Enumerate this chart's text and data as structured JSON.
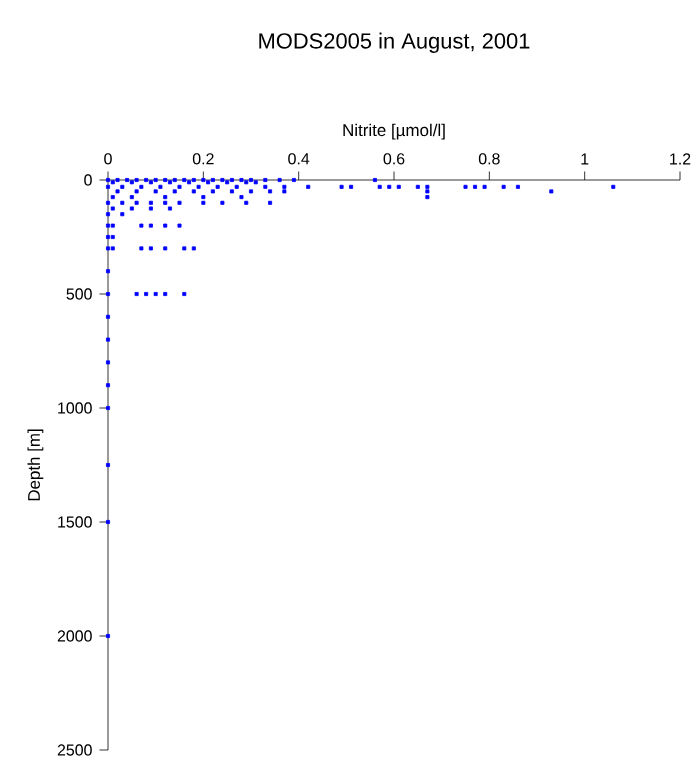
{
  "chart_data": {
    "type": "scatter",
    "title": "MODS2005 in August, 2001",
    "xlabel": "Nitrite [µmol/l]",
    "ylabel": "Depth [m]",
    "xlim": [
      0,
      1.2
    ],
    "xticks": [
      0,
      0.2,
      0.4,
      0.6,
      0.8,
      1,
      1.2
    ],
    "ylim": [
      2500,
      0
    ],
    "yticks": [
      0,
      500,
      1000,
      1500,
      2000,
      2500
    ],
    "marker": "square",
    "series": [
      {
        "color": "#0000ff",
        "x": [
          0,
          0.02,
          0.04,
          0.06,
          0.08,
          0.1,
          0.12,
          0.14,
          0.16,
          0.18,
          0.2,
          0.22,
          0.24,
          0.26,
          0.28,
          0.3,
          0.33,
          0.36,
          0.39,
          0.56,
          0.01,
          0.05,
          0.09,
          0.13,
          0.17,
          0.21,
          0.25,
          0.29,
          0.31,
          0,
          0.03,
          0.07,
          0.11,
          0.15,
          0.19,
          0.23,
          0.27,
          0.33,
          0.37,
          0.42,
          0.49,
          0.51,
          0.57,
          0.59,
          0.61,
          0.65,
          0.67,
          0.75,
          0.77,
          0.79,
          0.83,
          0.86,
          1.06,
          0.02,
          0.06,
          0.1,
          0.14,
          0.18,
          0.22,
          0.26,
          0.3,
          0.34,
          0.37,
          0.67,
          0.93,
          0.67,
          0.01,
          0.05,
          0.12,
          0.2,
          0.28,
          0,
          0.03,
          0.06,
          0.09,
          0.12,
          0.15,
          0.2,
          0.24,
          0.29,
          0.34,
          0.01,
          0.05,
          0.09,
          0.13,
          0,
          0.03,
          0,
          0.01,
          0.07,
          0.09,
          0.12,
          0.15,
          0,
          0.01,
          0,
          0.01,
          0.07,
          0.09,
          0.12,
          0.16,
          0.18,
          0,
          0,
          0.06,
          0.08,
          0.1,
          0.12,
          0.16,
          0,
          0,
          0,
          0,
          0,
          0,
          0,
          0
        ],
        "values": [
          0,
          0,
          0,
          0,
          0,
          0,
          0,
          0,
          0,
          0,
          0,
          0,
          0,
          0,
          0,
          0,
          0,
          0,
          0,
          0,
          10,
          10,
          10,
          10,
          10,
          10,
          10,
          10,
          10,
          30,
          30,
          30,
          30,
          30,
          30,
          30,
          30,
          30,
          30,
          30,
          30,
          30,
          30,
          30,
          30,
          30,
          30,
          30,
          30,
          30,
          30,
          30,
          30,
          50,
          50,
          50,
          50,
          50,
          50,
          50,
          50,
          50,
          50,
          50,
          50,
          75,
          75,
          75,
          75,
          75,
          75,
          100,
          100,
          100,
          100,
          100,
          100,
          100,
          100,
          100,
          100,
          125,
          125,
          125,
          125,
          150,
          150,
          200,
          200,
          200,
          200,
          200,
          200,
          250,
          250,
          300,
          300,
          300,
          300,
          300,
          300,
          300,
          400,
          500,
          500,
          500,
          500,
          500,
          500,
          600,
          700,
          800,
          900,
          1000,
          1250,
          1500,
          2000
        ]
      }
    ]
  }
}
